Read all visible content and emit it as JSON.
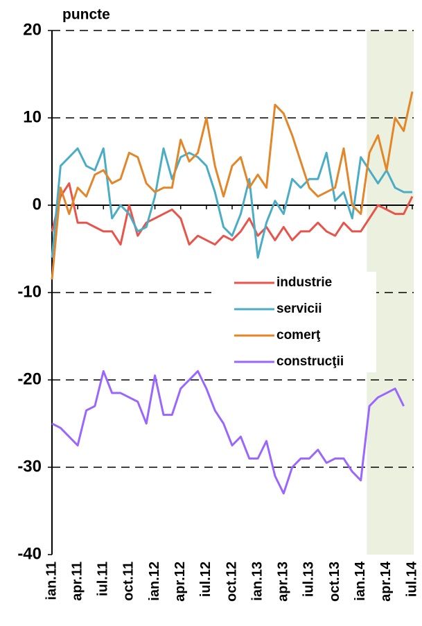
{
  "chart_data": {
    "type": "line",
    "y_label": "puncte",
    "categories": [
      "ian.11",
      null,
      null,
      "apr.11",
      null,
      null,
      "iul.11",
      null,
      null,
      "oct.11",
      null,
      null,
      "ian.12",
      null,
      null,
      "apr.12",
      null,
      null,
      "iul.12",
      null,
      null,
      "oct.12",
      null,
      null,
      "ian.13",
      null,
      null,
      "apr.13",
      null,
      null,
      "iul.13",
      null,
      null,
      "oct.13",
      null,
      null,
      "ian.14",
      null,
      null,
      "apr.14",
      null,
      null,
      "iul.14"
    ],
    "series": [
      {
        "name": "industrie",
        "color": "#e8534a",
        "values": [
          -3,
          1,
          2.5,
          -2,
          -2,
          -2.5,
          -3,
          -3,
          -4.5,
          0,
          -3.5,
          -2,
          -1.5,
          -1,
          -0.5,
          -1.5,
          -4.5,
          -3.5,
          -4,
          -4.5,
          -3.5,
          -4,
          -3,
          -1.5,
          -3.5,
          -2.5,
          -4,
          -2.5,
          -4,
          -3,
          -3,
          -2,
          -3,
          -3.5,
          -2,
          -3,
          -3,
          -1.5,
          0,
          -0.5,
          -1,
          -1,
          1
        ]
      },
      {
        "name": "servicii",
        "color": "#4bacc6",
        "values": [
          -6,
          4.5,
          5.5,
          6.5,
          4.5,
          4,
          6.5,
          -1.5,
          0,
          -1,
          -3,
          -2.5,
          1,
          6.5,
          3,
          5.5,
          6,
          5.5,
          4.5,
          1.5,
          -2.5,
          -3.5,
          -1,
          3,
          -6,
          -2,
          0.5,
          -1,
          3,
          2,
          3,
          3,
          6,
          0.5,
          1.5,
          -1.5,
          5.5,
          4,
          2.5,
          4,
          2,
          1.5,
          1.5
        ]
      },
      {
        "name": "comerţ",
        "color": "#e3862a",
        "values": [
          -8.5,
          2,
          -1,
          2,
          1,
          3.5,
          4,
          2.5,
          3,
          6,
          5.5,
          2.5,
          1.5,
          2,
          2,
          7.5,
          5,
          6,
          10,
          4.5,
          1,
          4.5,
          5.5,
          2,
          3.5,
          2,
          11.5,
          10.5,
          8,
          5,
          2,
          1,
          1.5,
          2,
          6.5,
          0,
          -1,
          6,
          8,
          4,
          10,
          8.5,
          13
        ]
      },
      {
        "name": "construcţii",
        "color": "#9966ff",
        "values": [
          -25,
          -25.5,
          -26.5,
          -27.5,
          -23.5,
          -23,
          -19,
          -21.5,
          -21.5,
          -22,
          -22.5,
          -25,
          -19.5,
          -24,
          -24,
          -21,
          -20,
          -19,
          -21,
          -23.5,
          -25,
          -27.5,
          -26.5,
          -29,
          -29,
          -27,
          -31,
          -33,
          -30,
          -29,
          -29,
          -28,
          -29.5,
          -29,
          -29,
          -30.5,
          -31.5,
          -23,
          -22,
          -21.5,
          -21,
          -23,
          null
        ]
      }
    ],
    "ylim": [
      -40,
      20
    ],
    "yticks": [
      -40,
      -30,
      -20,
      -10,
      0,
      10,
      20
    ],
    "grid": true,
    "shade": {
      "from": 37,
      "to": 42,
      "color": "#ebf1de"
    }
  }
}
